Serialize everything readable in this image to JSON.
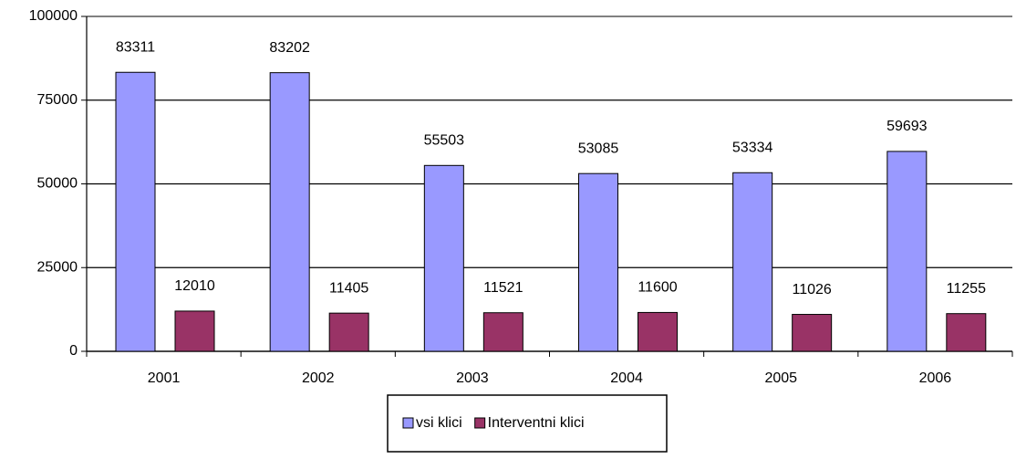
{
  "chart_data": {
    "type": "bar",
    "categories": [
      "2001",
      "2002",
      "2003",
      "2004",
      "2005",
      "2006"
    ],
    "series": [
      {
        "name": "vsi klici",
        "color": "#9999ff",
        "values": [
          83311,
          83202,
          55503,
          53085,
          53334,
          59693
        ]
      },
      {
        "name": "Interventni klici",
        "color": "#993366",
        "values": [
          12010,
          11405,
          11521,
          11600,
          11026,
          11255
        ]
      }
    ],
    "ylim": [
      0,
      100000
    ],
    "yticks": [
      0,
      25000,
      50000,
      75000,
      100000
    ],
    "grid": true,
    "legend": "bottom"
  }
}
